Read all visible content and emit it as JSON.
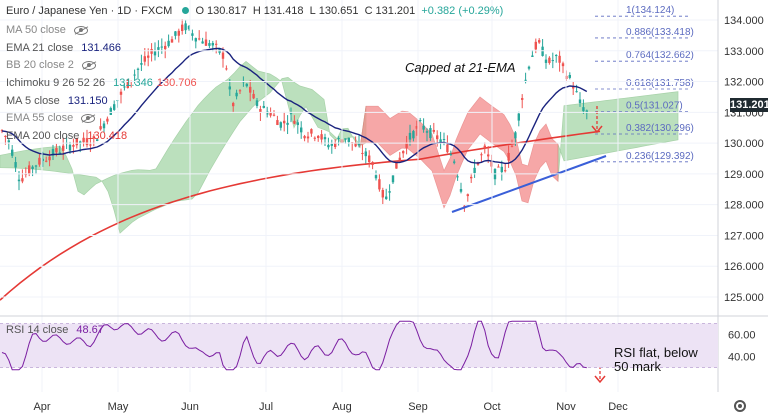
{
  "header": {
    "symbol": "Euro / Japanese Yen · 1D · FXCM",
    "open_label": "O",
    "open": "130.817",
    "high_label": "H",
    "high": "131.418",
    "low_label": "L",
    "low": "130.651",
    "close_label": "C",
    "close": "131.201",
    "change": "+0.382 (+0.29%)"
  },
  "legend": [
    {
      "label": "MA 50 close",
      "value": "",
      "color": "#888888",
      "eye": true
    },
    {
      "label": "EMA 21 close",
      "value": "131.466",
      "color": "#1a237e"
    },
    {
      "label": "BB 20 close 2",
      "value": "",
      "color": "#888888",
      "eye": true
    },
    {
      "label": "Ichimoku 9 26 52 26",
      "value": "131.346",
      "value2": "130.706",
      "color": "#26a69a",
      "color2": "#ef5350"
    },
    {
      "label": "MA 5 close",
      "value": "131.150",
      "color": "#1a237e"
    },
    {
      "label": "EMA 55 close",
      "value": "",
      "color": "#888888",
      "eye": true
    },
    {
      "label": "EMA 200 close",
      "value": "130.418",
      "color": "#e53935"
    }
  ],
  "last_price": "131.201",
  "colors": {
    "up": "#26a69a",
    "down": "#ef5350",
    "ema21": "#1a237e",
    "ema200": "#e53935",
    "cloud_bull": "#a5d6a7",
    "cloud_bear": "#f48a8a",
    "trend": "#3a5fd8",
    "fib": "#5c6bc0",
    "rsi": "#7b1fa2",
    "rsi_band": "#ede3f5"
  },
  "chart_data": {
    "type": "candlestick",
    "title": "Euro / Japanese Yen · 1D · FXCM",
    "y_axis": {
      "ticks": [
        "134.000",
        "133.000",
        "132.000",
        "131.000",
        "130.000",
        "129.000",
        "128.000",
        "127.000",
        "126.000",
        "125.000"
      ],
      "ylim": [
        124.6,
        134.4
      ]
    },
    "x_axis": {
      "ticks": [
        "Apr",
        "May",
        "Jun",
        "Jul",
        "Aug",
        "Sep",
        "Oct",
        "Nov",
        "Dec"
      ]
    },
    "series": [
      {
        "name": "EMA 200 close",
        "value": 130.418
      },
      {
        "name": "EMA 21 close",
        "value": 131.466
      },
      {
        "name": "MA 5 close",
        "value": 131.15
      }
    ],
    "trend_points": [
      {
        "x": 129.94,
        "y": 127.94
      },
      {
        "x": 129.94,
        "y": 129.36
      }
    ],
    "fibonacci": [
      {
        "ratio": "1",
        "value": 134.124,
        "label": "1(134.124)"
      },
      {
        "ratio": "0.886",
        "value": 133.418,
        "label": "0.886(133.418)"
      },
      {
        "ratio": "0.764",
        "value": 132.662,
        "label": "0.764(132.662)"
      },
      {
        "ratio": "0.618",
        "value": 131.758,
        "label": "0.618(131.758)"
      },
      {
        "ratio": "0.5",
        "value": 131.027,
        "label": "0.5(131.027)"
      },
      {
        "ratio": "0.382",
        "value": 130.296,
        "label": "0.382(130.296)"
      },
      {
        "ratio": "0.236",
        "value": 129.392,
        "label": "0.236(129.392)"
      }
    ],
    "annotations": [
      "Capped at 21-EMA",
      "RSI flat, below 50 mark"
    ],
    "rsi": {
      "label": "RSI 14 close",
      "value": "48.67",
      "ticks": [
        "60.00",
        "40.00"
      ],
      "band": [
        30,
        70
      ]
    }
  }
}
